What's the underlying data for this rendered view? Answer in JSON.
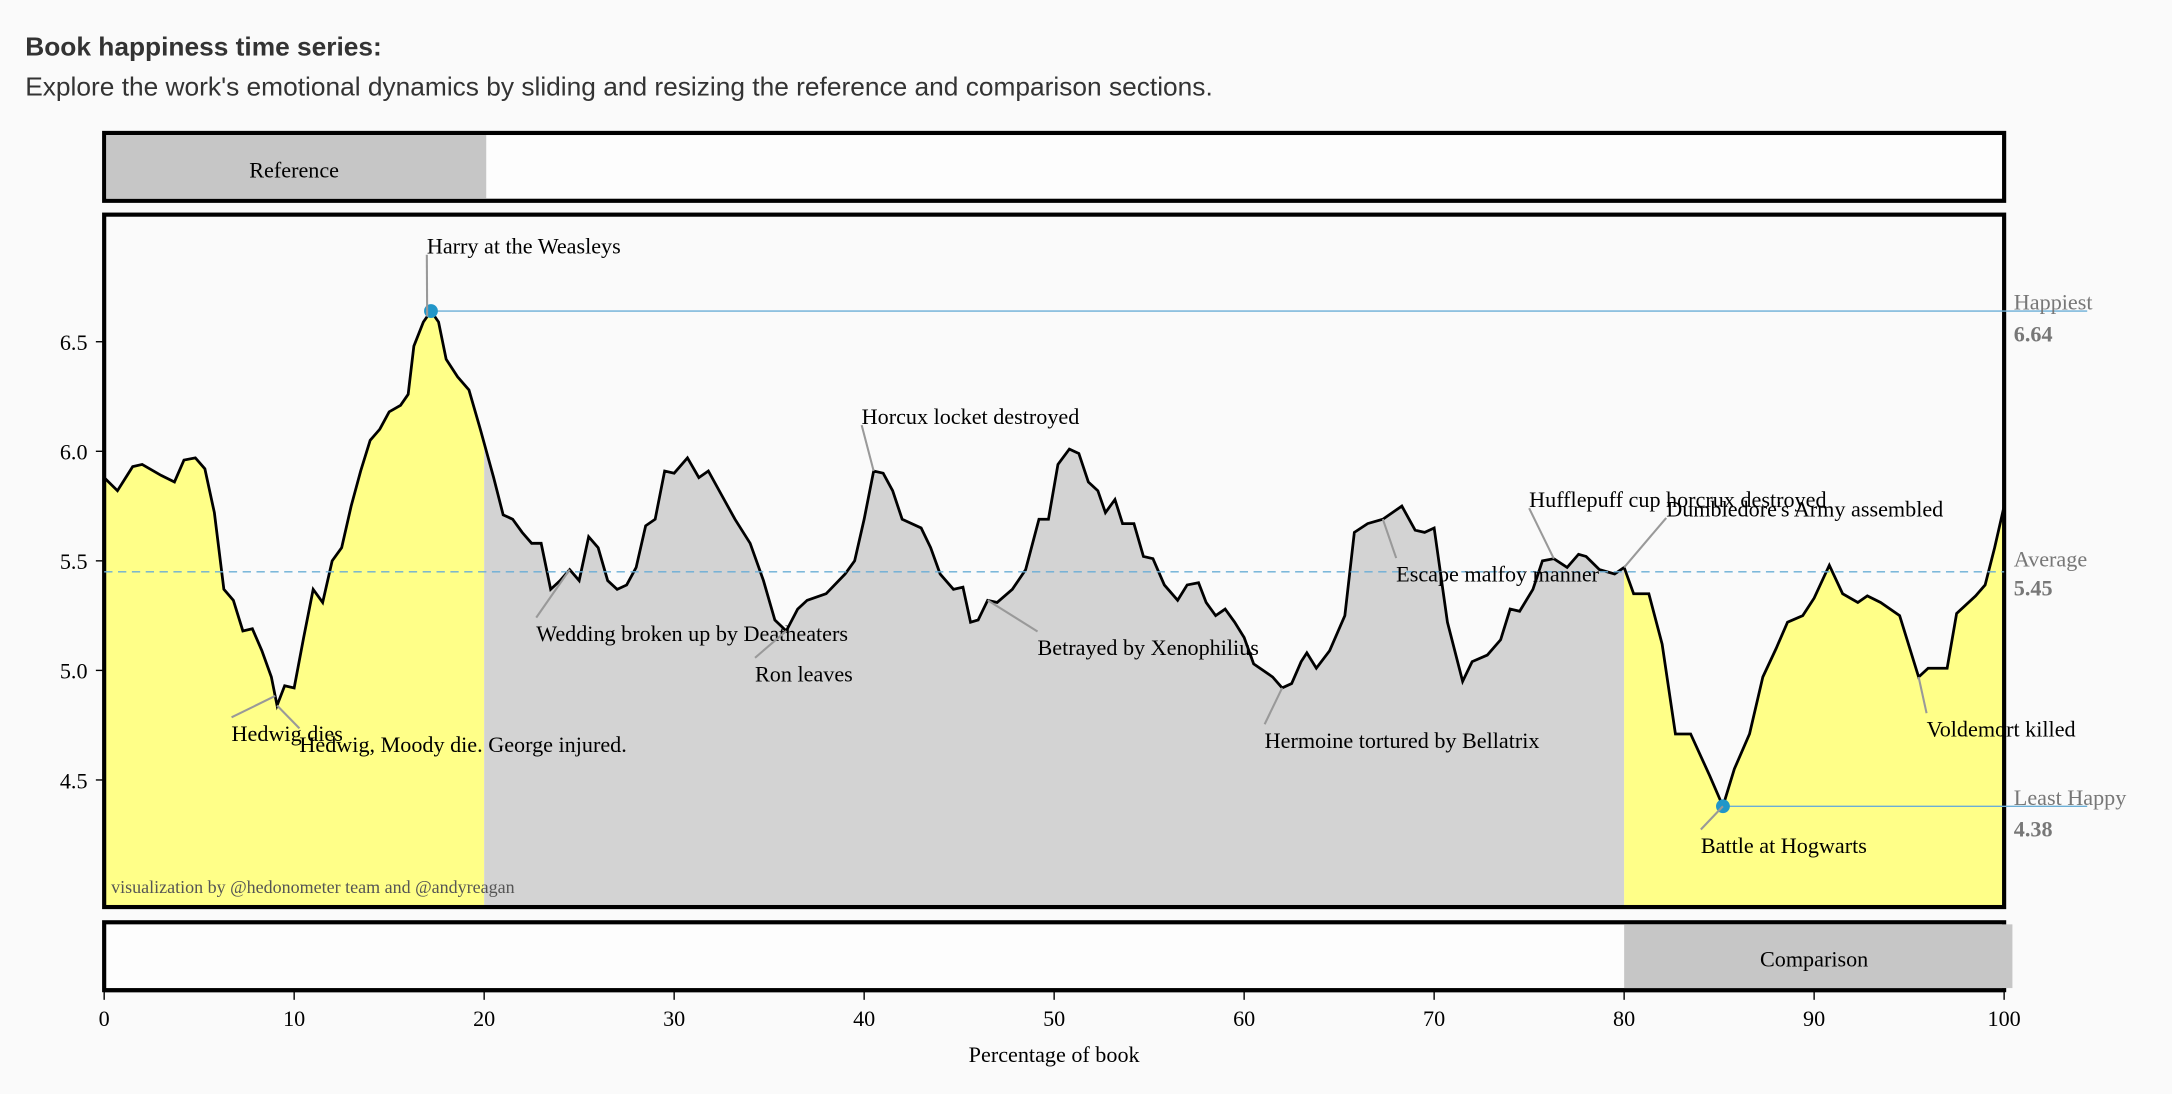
{
  "header": {
    "title": "Book happiness time series:",
    "subtitle": "Explore the work's emotional dynamics by sliding and resizing the reference and comparison sections."
  },
  "chart_data": {
    "type": "area",
    "x": [
      0,
      0.7,
      1.5,
      2,
      3,
      3.7,
      4.2,
      4.8,
      5.3,
      5.8,
      6.3,
      6.8,
      7.3,
      7.8,
      8.3,
      8.8,
      9.1,
      9.5,
      10,
      10.5,
      11,
      11.5,
      12,
      12.5,
      13,
      13.5,
      14,
      14.5,
      15,
      15.6,
      16,
      16.3,
      16.8,
      17.2,
      17.6,
      18,
      18.6,
      19.2,
      19.8,
      20.5,
      21,
      21.5,
      22,
      22.5,
      23,
      23.5,
      24,
      24.5,
      25,
      25.5,
      26,
      26.5,
      27,
      27.5,
      28,
      28.5,
      29,
      29.5,
      30,
      30.7,
      31.3,
      31.8,
      32.5,
      33.2,
      34,
      34.7,
      35.3,
      35.9,
      36.5,
      37,
      38,
      39,
      39.5,
      40,
      40.5,
      41,
      41.5,
      42,
      43,
      43.5,
      44,
      44.7,
      45.2,
      45.6,
      46,
      46.5,
      47,
      47.8,
      48.5,
      49.2,
      49.7,
      50.2,
      50.8,
      51.3,
      51.8,
      52.3,
      52.7,
      53.2,
      53.6,
      54.2,
      54.7,
      55.2,
      55.8,
      56.5,
      57,
      57.6,
      58,
      58.5,
      59,
      59.5,
      60,
      60.5,
      61.5,
      62,
      62.5,
      63,
      63.3,
      63.8,
      64.5,
      65.3,
      65.8,
      66.5,
      67.3,
      68.3,
      69,
      69.5,
      70,
      70.7,
      71.5,
      72,
      72.8,
      73.5,
      74,
      74.5,
      75.2,
      75.7,
      76.3,
      77,
      77.6,
      78,
      78.7,
      79.5,
      80,
      80.5,
      81.3,
      82,
      82.7,
      83.5,
      84.5,
      85.2,
      85.8,
      86.6,
      87.3,
      88,
      88.6,
      89.4,
      90,
      90.8,
      91.5,
      92.3,
      92.8,
      93.5,
      94.5,
      95.5,
      96,
      97,
      97.5,
      98.5,
      99,
      99.5,
      100
    ],
    "values": [
      5.88,
      5.82,
      5.93,
      5.94,
      5.89,
      5.86,
      5.96,
      5.97,
      5.92,
      5.72,
      5.37,
      5.32,
      5.18,
      5.19,
      5.09,
      4.97,
      4.84,
      4.93,
      4.92,
      5.15,
      5.37,
      5.31,
      5.5,
      5.56,
      5.75,
      5.91,
      6.05,
      6.1,
      6.18,
      6.21,
      6.26,
      6.48,
      6.59,
      6.64,
      6.59,
      6.42,
      6.34,
      6.28,
      6.1,
      5.88,
      5.71,
      5.69,
      5.63,
      5.58,
      5.58,
      5.37,
      5.41,
      5.46,
      5.41,
      5.61,
      5.56,
      5.41,
      5.37,
      5.39,
      5.47,
      5.66,
      5.69,
      5.91,
      5.9,
      5.97,
      5.88,
      5.91,
      5.8,
      5.69,
      5.58,
      5.41,
      5.23,
      5.18,
      5.28,
      5.32,
      5.35,
      5.44,
      5.5,
      5.69,
      5.91,
      5.9,
      5.82,
      5.69,
      5.65,
      5.56,
      5.44,
      5.37,
      5.38,
      5.22,
      5.23,
      5.32,
      5.31,
      5.37,
      5.46,
      5.69,
      5.69,
      5.94,
      6.01,
      5.99,
      5.86,
      5.82,
      5.72,
      5.78,
      5.67,
      5.67,
      5.52,
      5.51,
      5.39,
      5.32,
      5.39,
      5.4,
      5.31,
      5.25,
      5.28,
      5.22,
      5.15,
      5.03,
      4.97,
      4.92,
      4.94,
      5.04,
      5.08,
      5.01,
      5.09,
      5.25,
      5.63,
      5.67,
      5.69,
      5.75,
      5.64,
      5.63,
      5.65,
      5.22,
      4.95,
      5.04,
      5.07,
      5.14,
      5.28,
      5.27,
      5.37,
      5.5,
      5.51,
      5.47,
      5.53,
      5.52,
      5.46,
      5.44,
      5.47,
      5.35,
      5.35,
      5.12,
      4.71,
      4.71,
      4.52,
      4.38,
      4.55,
      4.71,
      4.97,
      5.1,
      5.22,
      5.25,
      5.33,
      5.48,
      5.35,
      5.31,
      5.34,
      5.31,
      5.25,
      4.97,
      5.01,
      5.01,
      5.26,
      5.34,
      5.39,
      5.56,
      5.75
    ],
    "xlim": [
      0,
      100
    ],
    "xticks": [
      0,
      10,
      20,
      30,
      40,
      50,
      60,
      70,
      80,
      90,
      100
    ],
    "ylim": [
      3.92,
      7.08
    ],
    "yticks": [
      4.5,
      5.5,
      {
        "value": 5,
        "label": "5.0"
      },
      {
        "value": 6,
        "label": "6.0"
      },
      6.5
    ],
    "xlabel": "Percentage of book",
    "reference": {
      "label": "Reference",
      "range": [
        0,
        20
      ]
    },
    "comparison": {
      "label": "Comparison",
      "range": [
        80,
        100
      ]
    },
    "happiest": {
      "label": "Happiest",
      "value": 6.64,
      "x": 17.2
    },
    "average": {
      "label": "Average",
      "value": 5.45
    },
    "least": {
      "label": "Least Happy",
      "value": 4.38,
      "x": 85.2
    },
    "annotations": [
      {
        "text": "Harry at the Weasleys",
        "x": 17
      },
      {
        "text": "Horcux locket destroyed",
        "x": 40.5
      },
      {
        "text": "Hufflepuff cup horcrux destroyed",
        "x": 76.3
      },
      {
        "text": "Dumbledore's Army assembled",
        "x": 80
      },
      {
        "text": "Escape malfoy manner",
        "x": 67.3
      },
      {
        "text": "Wedding broken up by Deatheaters",
        "x": 24.5
      },
      {
        "text": "Ron leaves",
        "x": 35.9
      },
      {
        "text": "Betrayed by Xenophilius",
        "x": 46.5
      },
      {
        "text": "Hermoine tortured by Bellatrix",
        "x": 62
      },
      {
        "text": "Hedwig dies",
        "x": 9
      },
      {
        "text": "Hedwig, Moody die. George injured.",
        "x": 9.1
      },
      {
        "text": "Voldemort killed",
        "x": 95.5
      },
      {
        "text": "Battle at Hogwarts",
        "x": 85.2
      }
    ],
    "credit": "visualization by @hedonometer team and @andyreagan"
  }
}
